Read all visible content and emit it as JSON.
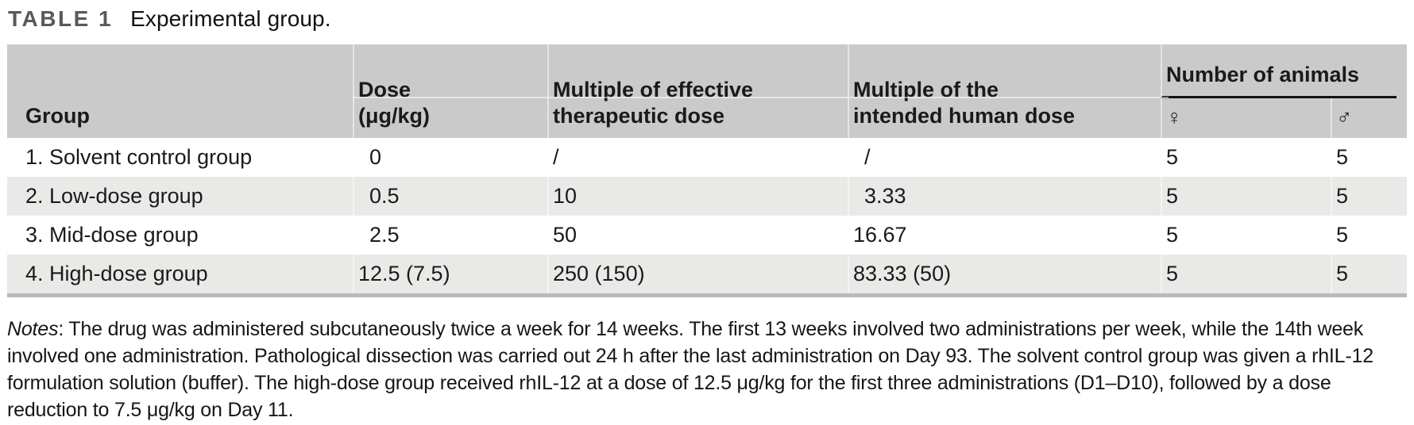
{
  "title": {
    "label": "TABLE 1",
    "caption": "Experimental group."
  },
  "table": {
    "columns": [
      {
        "header_lines": [
          "Group"
        ]
      },
      {
        "header_lines": [
          "Dose",
          "(μg/kg)"
        ]
      },
      {
        "header_lines": [
          "Multiple of effective",
          "therapeutic dose"
        ]
      },
      {
        "header_lines": [
          "Multiple of the",
          "intended human dose"
        ]
      }
    ],
    "animals": {
      "label": "Number of animals",
      "female_symbol": "♀",
      "male_symbol": "♂"
    },
    "rows": [
      {
        "cells": [
          {
            "text": "1. Solvent control group"
          },
          {
            "text": "0",
            "indent": true
          },
          {
            "text": "/"
          },
          {
            "text": "/",
            "indent": true
          },
          {
            "text": "5"
          },
          {
            "text": "5"
          }
        ]
      },
      {
        "cells": [
          {
            "text": "2. Low-dose group"
          },
          {
            "text": "0.5",
            "indent": true
          },
          {
            "text": "10"
          },
          {
            "text": "3.33",
            "indent": true
          },
          {
            "text": "5"
          },
          {
            "text": "5"
          }
        ]
      },
      {
        "cells": [
          {
            "text": "3. Mid-dose group"
          },
          {
            "text": "2.5",
            "indent": true
          },
          {
            "text": "50"
          },
          {
            "text": "16.67"
          },
          {
            "text": "5"
          },
          {
            "text": "5"
          }
        ]
      },
      {
        "cells": [
          {
            "text": "4. High-dose group"
          },
          {
            "text": "12.5 (7.5)"
          },
          {
            "text": "250 (150)"
          },
          {
            "text": "83.33 (50)"
          },
          {
            "text": "5"
          },
          {
            "text": "5"
          }
        ]
      }
    ]
  },
  "notes": {
    "label": "Notes",
    "text": ": The drug was administered subcutaneously twice a week for 14 weeks. The first 13 weeks involved two administrations per week, while the 14th week involved one administration. Pathological dissection was carried out 24 h after the last administration on Day 93. The solvent control group was given a rhIL-12 formulation solution (buffer). The high-dose group received rhIL-12 at a dose of 12.5 μg/kg for the first three administrations (D1–D10), followed by a dose reduction to 7.5 μg/kg on Day 11."
  },
  "colors": {
    "header_bg": "#cacaca",
    "alt_row_bg": "#e9e9e7",
    "table_bottom_border": "#b9b9b9",
    "title_label": "#595959",
    "text": "#1a1a1a"
  }
}
